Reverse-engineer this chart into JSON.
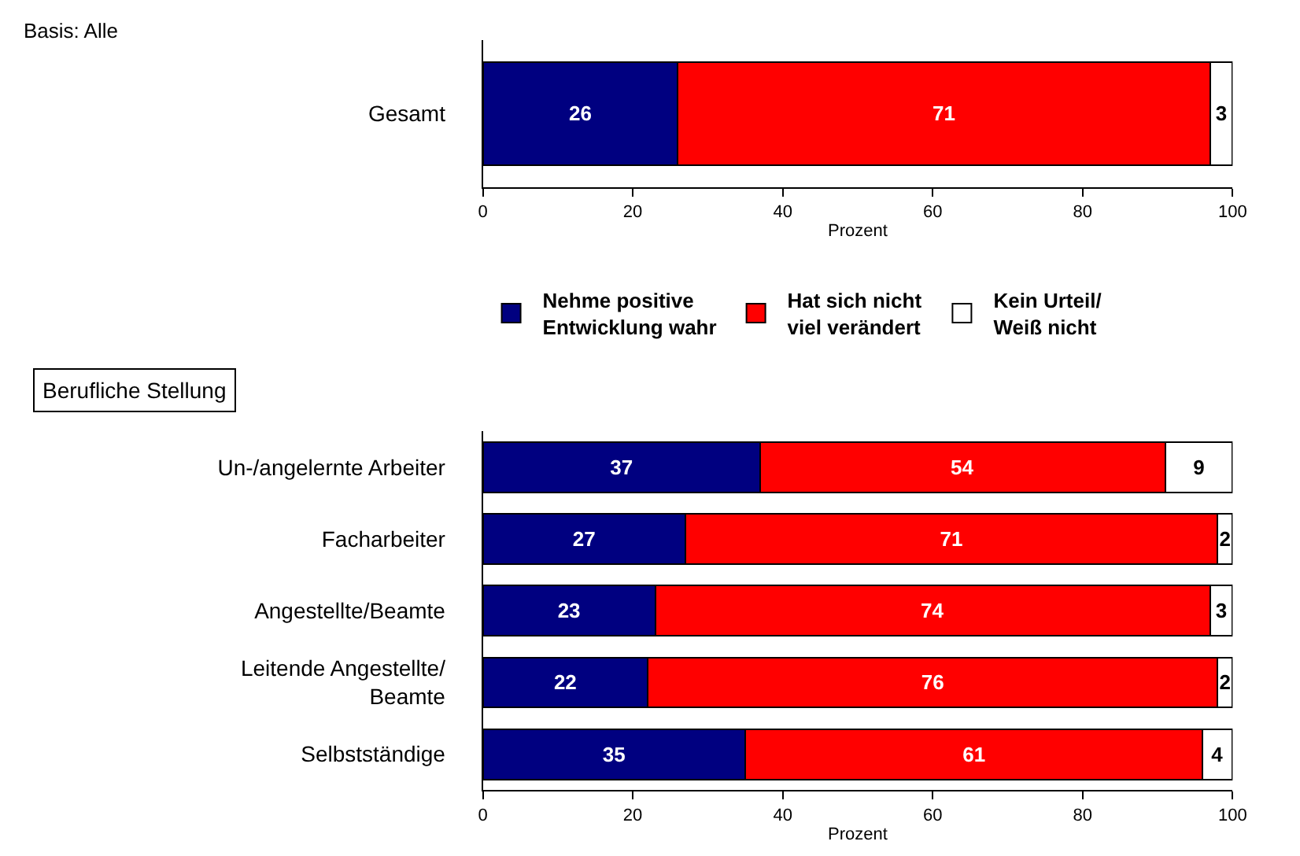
{
  "chart_data": [
    {
      "type": "bar",
      "orientation": "horizontal",
      "stacked": true,
      "data_labels": true,
      "legend": false,
      "xlabel": "Prozent",
      "annotations": [
        "Basis: Alle"
      ],
      "categories": [
        "Gesamt"
      ],
      "xlim": [
        0,
        100
      ],
      "xticks": [
        0,
        20,
        40,
        60,
        80,
        100
      ],
      "series": [
        {
          "color": "#000080",
          "values": [
            26
          ]
        },
        {
          "color": "#ff0000",
          "values": [
            71
          ]
        },
        {
          "color": "#ffffff",
          "values": [
            3
          ]
        }
      ]
    },
    {
      "type": "bar",
      "orientation": "horizontal",
      "stacked": true,
      "data_labels": true,
      "legend": "top",
      "xlabel": "Prozent",
      "annotations": [
        "Berufliche Stellung"
      ],
      "categories": [
        "Un-/angelernte Arbeiter",
        "Facharbeiter",
        "Angestellte/Beamte",
        "Leitende Angestellte/\nBeamte",
        "Selbstständige"
      ],
      "xlim": [
        0,
        100
      ],
      "xticks": [
        0,
        20,
        40,
        60,
        80,
        100
      ],
      "series": [
        {
          "name": "Nehme positive\nEntwicklung wahr",
          "color": "#000080",
          "values": [
            37,
            27,
            23,
            22,
            35
          ]
        },
        {
          "name": "Hat sich nicht\nviel verändert",
          "color": "#ff0000",
          "values": [
            54,
            71,
            74,
            76,
            61
          ]
        },
        {
          "name": "Kein Urteil/\nWeiß nicht",
          "color": "#ffffff",
          "values": [
            9,
            2,
            3,
            2,
            4
          ]
        }
      ]
    }
  ]
}
